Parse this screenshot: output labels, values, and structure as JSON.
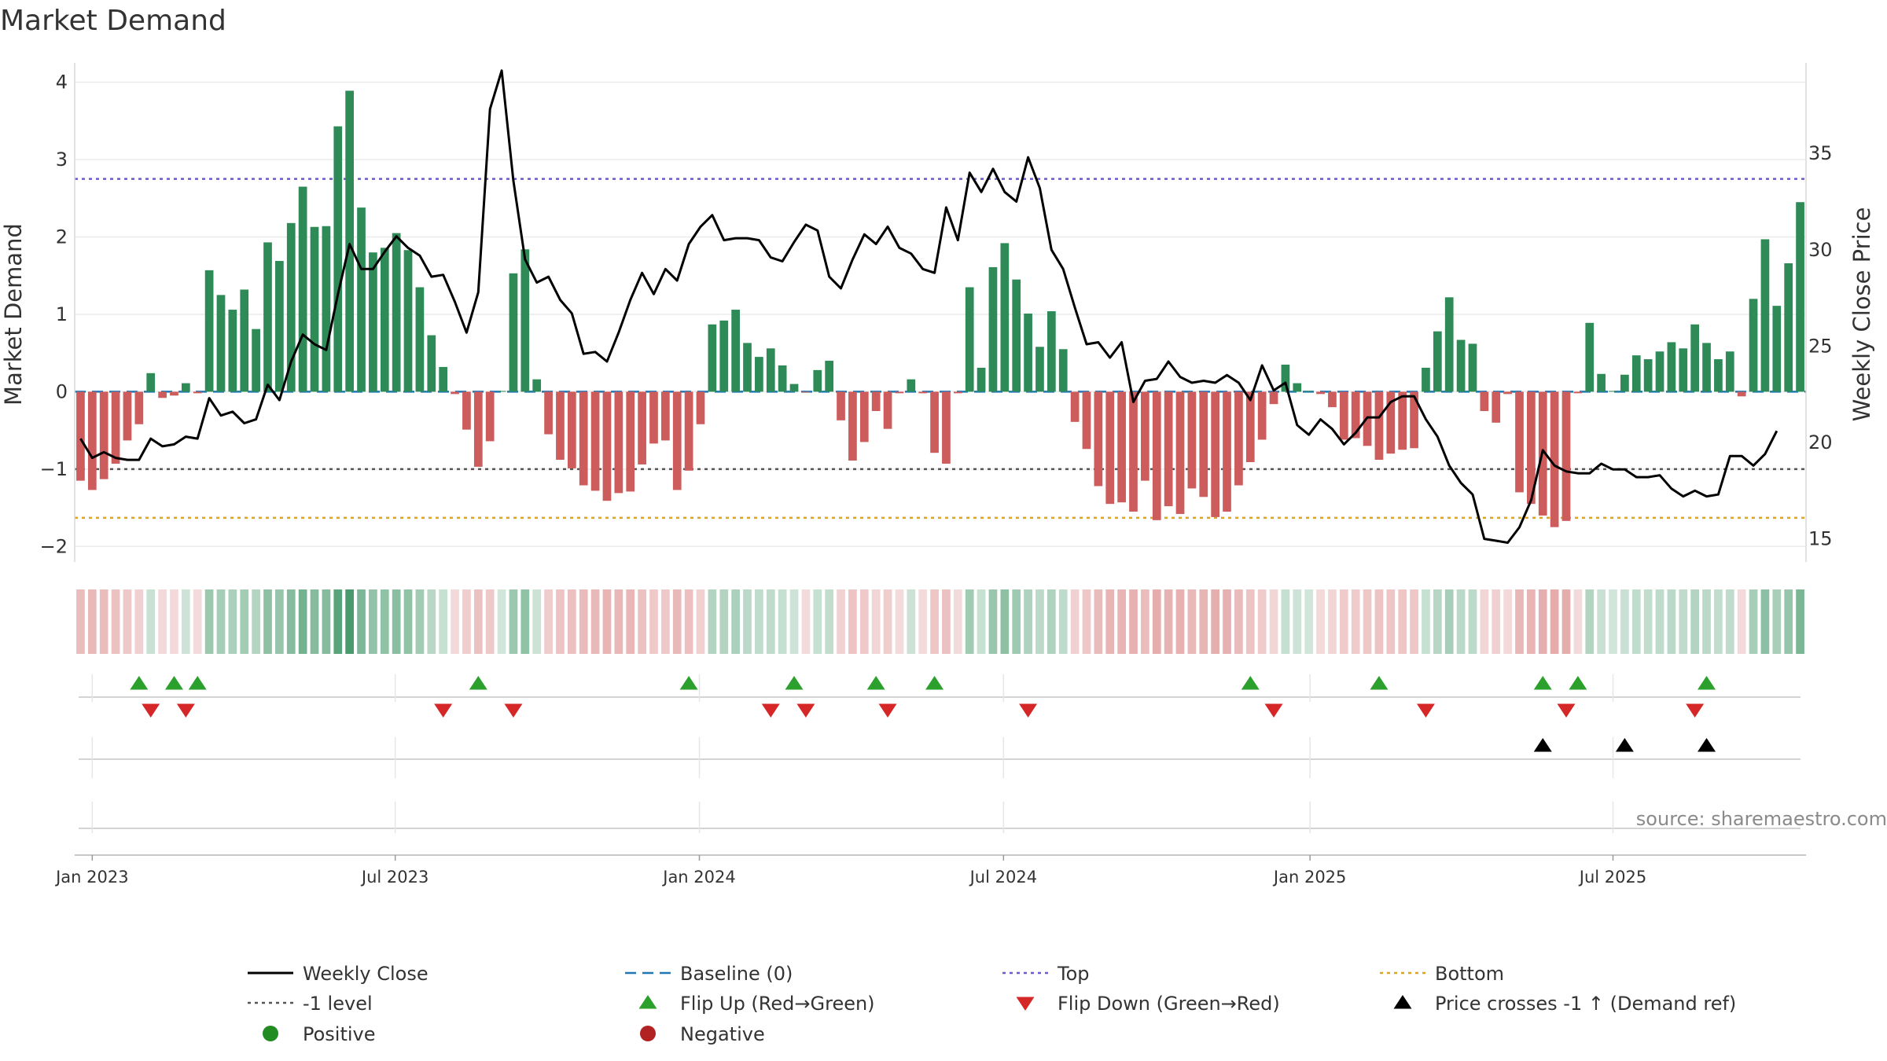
{
  "chart_data": {
    "type": "bar",
    "title": "Market Demand",
    "ylabel": "Market Demand",
    "y2label": "Weekly Close Price",
    "source": "source: sharemaestro.com",
    "ylim": [
      -2.2,
      4.25
    ],
    "y2lim": [
      13.8,
      39.7
    ],
    "yticks": [
      "4",
      "3",
      "2",
      "1",
      "0",
      "−1",
      "−2"
    ],
    "yticks_values": [
      4,
      3,
      2,
      1,
      0,
      -1,
      -2
    ],
    "y2ticks": [
      "35",
      "30",
      "25",
      "20",
      "15"
    ],
    "y2ticks_values": [
      35,
      30,
      25,
      20,
      15
    ],
    "xticks": [
      "Jan 2023",
      "Jul 2023",
      "Jan 2024",
      "Jul 2024",
      "Jan 2025",
      "Jul 2025"
    ],
    "xticks_week": [
      1,
      26.9,
      52.9,
      78.9,
      105.1,
      131
    ],
    "levels": {
      "baseline": 0,
      "top": 2.75,
      "minus_one": -1,
      "bottom": -1.63
    },
    "demand": [
      -1.15,
      -1.27,
      -1.13,
      -0.93,
      -0.63,
      -0.42,
      0.24,
      -0.08,
      -0.05,
      0.11,
      -0.02,
      1.57,
      1.25,
      1.06,
      1.32,
      0.81,
      1.93,
      1.69,
      2.18,
      2.65,
      2.13,
      2.14,
      3.43,
      3.89,
      2.38,
      1.8,
      1.86,
      2.05,
      1.83,
      1.35,
      0.73,
      0.32,
      -0.03,
      -0.49,
      -0.97,
      -0.64,
      0.01,
      1.53,
      1.84,
      0.16,
      -0.55,
      -0.88,
      -0.99,
      -1.21,
      -1.28,
      -1.41,
      -1.31,
      -1.29,
      -0.94,
      -0.67,
      -0.63,
      -1.27,
      -1.02,
      -0.42,
      0.87,
      0.92,
      1.06,
      0.63,
      0.45,
      0.56,
      0.34,
      0.1,
      -0.01,
      0.28,
      0.4,
      -0.37,
      -0.89,
      -0.65,
      -0.25,
      -0.48,
      -0.02,
      0.16,
      -0.02,
      -0.79,
      -0.93,
      -0.02,
      1.35,
      0.31,
      1.61,
      1.92,
      1.45,
      1.01,
      0.58,
      1.04,
      0.55,
      -0.39,
      -0.74,
      -1.22,
      -1.45,
      -1.43,
      -1.55,
      -1.15,
      -1.66,
      -1.48,
      -1.58,
      -1.25,
      -1.36,
      -1.62,
      -1.55,
      -1.21,
      -0.91,
      -0.62,
      -0.16,
      0.35,
      0.11,
      0.01,
      -0.03,
      -0.2,
      -0.62,
      -0.6,
      -0.7,
      -0.88,
      -0.8,
      -0.75,
      -0.73,
      0.31,
      0.78,
      1.22,
      0.67,
      0.62,
      -0.25,
      -0.4,
      -0.03,
      -1.3,
      -1.45,
      -1.6,
      -1.75,
      -1.67,
      -0.02,
      0.89,
      0.23,
      0.01,
      0.22,
      0.47,
      0.42,
      0.52,
      0.64,
      0.56,
      0.87,
      0.63,
      0.42,
      0.52,
      -0.06,
      1.2,
      1.97,
      1.11,
      1.66,
      2.45
    ],
    "price": [
      20.2,
      19.2,
      19.5,
      19.2,
      19.1,
      19.1,
      20.2,
      19.8,
      19.9,
      20.3,
      20.2,
      22.3,
      21.4,
      21.6,
      21.0,
      21.2,
      23.0,
      22.2,
      24.2,
      25.6,
      25.1,
      24.8,
      27.7,
      30.3,
      29.0,
      29.0,
      29.9,
      30.7,
      30.1,
      29.7,
      28.6,
      28.7,
      27.3,
      25.7,
      27.8,
      37.3,
      39.3,
      33.6,
      29.5,
      28.3,
      28.6,
      27.4,
      26.7,
      24.6,
      24.7,
      24.2,
      25.7,
      27.4,
      28.8,
      27.7,
      29.0,
      28.4,
      30.3,
      31.2,
      31.8,
      30.5,
      30.6,
      30.6,
      30.5,
      29.6,
      29.4,
      30.4,
      31.3,
      31.0,
      28.6,
      28.0,
      29.5,
      30.8,
      30.3,
      31.2,
      30.1,
      29.8,
      29.0,
      28.8,
      32.2,
      30.5,
      34.0,
      33.0,
      34.2,
      33.0,
      32.5,
      34.8,
      33.2,
      30.0,
      29.0,
      27.0,
      25.1,
      25.2,
      24.4,
      25.2,
      22.1,
      23.2,
      23.3,
      24.2,
      23.4,
      23.1,
      23.2,
      23.1,
      23.5,
      23.1,
      22.2,
      24.0,
      22.7,
      23.1,
      20.9,
      20.4,
      21.2,
      20.7,
      19.9,
      20.5,
      21.3,
      21.3,
      22.1,
      22.4,
      22.4,
      21.2,
      20.3,
      18.8,
      17.9,
      17.3,
      15.0,
      14.9,
      14.8,
      15.6,
      17.0,
      19.6,
      18.8,
      18.5,
      18.4,
      18.4,
      18.9,
      18.6,
      18.6,
      18.2,
      18.2,
      18.3,
      17.6,
      17.2,
      17.5,
      17.2,
      17.3,
      19.3,
      19.3,
      18.8,
      19.4,
      20.6
    ],
    "flip_up_weeks": [
      5,
      8,
      10,
      34,
      52,
      61,
      68,
      73,
      100,
      111,
      125,
      128,
      139
    ],
    "flip_down_weeks": [
      6,
      9,
      31,
      37,
      59,
      62,
      69,
      81,
      102,
      115,
      127,
      138
    ],
    "price_cross_weeks": [
      125,
      132,
      139
    ],
    "colors": {
      "positive": "#2e8b57",
      "negative": "#cd5c5c",
      "price_line": "#000000",
      "baseline": "#1f77b4",
      "top": "#6a5acd",
      "minus_one": "#555555",
      "bottom": "#daa520",
      "flip_up": "#2ca02c",
      "flip_down": "#d62728",
      "cross": "#000000",
      "positive_dot": "#228b22",
      "negative_dot": "#b22222"
    },
    "legend": [
      {
        "key": "close",
        "label": "Weekly Close"
      },
      {
        "key": "baseline",
        "label": "Baseline (0)"
      },
      {
        "key": "top",
        "label": "Top"
      },
      {
        "key": "bottom",
        "label": "Bottom"
      },
      {
        "key": "minus_one",
        "label": "-1 level"
      },
      {
        "key": "flip_up",
        "label": "Flip Up (Red→Green)"
      },
      {
        "key": "flip_down",
        "label": "Flip Down (Green→Red)"
      },
      {
        "key": "cross",
        "label": "Price crosses -1 ↑ (Demand ref)"
      },
      {
        "key": "positive",
        "label": "Positive"
      },
      {
        "key": "negative",
        "label": "Negative"
      }
    ]
  }
}
